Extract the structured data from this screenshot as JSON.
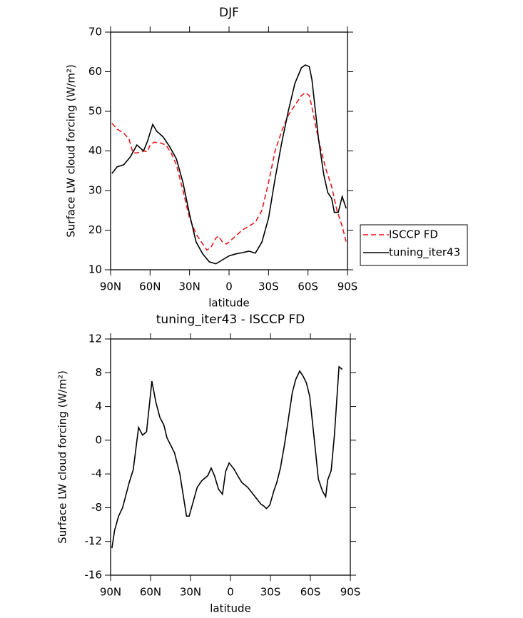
{
  "chart_data": [
    {
      "type": "line",
      "title": "DJF",
      "xlabel": "latitude",
      "ylabel": "Surface LW cloud forcing (W/m²)",
      "xlim": [
        90,
        -90
      ],
      "xticks": [
        {
          "value": 90,
          "label": "90N"
        },
        {
          "value": 60,
          "label": "60N"
        },
        {
          "value": 30,
          "label": "30N"
        },
        0,
        {
          "value": -30,
          "label": "30S"
        },
        {
          "value": -60,
          "label": "60S"
        },
        {
          "value": -90,
          "label": "90S"
        }
      ],
      "ylim": [
        10,
        70
      ],
      "yticks": [
        10,
        20,
        30,
        40,
        50,
        60,
        70
      ],
      "legend": "right",
      "series": [
        {
          "name": "ISCCP FD",
          "color": "#e8191d",
          "dash": true,
          "x": [
            89,
            85,
            80,
            76,
            73,
            70,
            65,
            62,
            60,
            57,
            52,
            48,
            44,
            40,
            35,
            30,
            25,
            20,
            17,
            14,
            10,
            8,
            5,
            2,
            0,
            -5,
            -10,
            -15,
            -20,
            -25,
            -30,
            -35,
            -40,
            -45,
            -50,
            -55,
            -58,
            -61,
            -63,
            -66,
            -70,
            -74,
            -78,
            -82,
            -86,
            -89
          ],
          "values": [
            47,
            45.5,
            44.5,
            43,
            39.5,
            39.5,
            40,
            39.8,
            41.5,
            42.2,
            42,
            41.5,
            39.5,
            36.5,
            30,
            23,
            19,
            16.5,
            15,
            15.5,
            18,
            18.5,
            17,
            16.5,
            17,
            18.5,
            20,
            21,
            22,
            25,
            32,
            40,
            45,
            49,
            51.5,
            54,
            54.7,
            54,
            51,
            46,
            40,
            35,
            31,
            25,
            21,
            17
          ]
        },
        {
          "name": "tuning_iter43",
          "color": "#000000",
          "dash": false,
          "x": [
            89,
            85,
            80,
            75,
            70,
            65,
            62,
            58,
            55,
            50,
            45,
            40,
            35,
            30,
            25,
            20,
            15,
            10,
            5,
            0,
            -5,
            -10,
            -15,
            -20,
            -25,
            -30,
            -35,
            -40,
            -45,
            -50,
            -55,
            -58,
            -61,
            -63,
            -65,
            -68,
            -72,
            -75,
            -78,
            -80,
            -83,
            -86,
            -89
          ],
          "values": [
            34.3,
            36,
            36.5,
            38.5,
            41.5,
            40,
            42.4,
            46.7,
            45,
            43.5,
            41,
            38,
            32,
            24,
            17,
            14,
            12,
            11.5,
            12.5,
            13.5,
            14,
            14.3,
            14.7,
            14.2,
            17,
            23,
            33,
            42,
            50,
            57,
            61,
            61.7,
            61.3,
            58,
            52,
            43,
            34,
            29.5,
            28,
            24.5,
            24.5,
            28.5,
            25.5
          ]
        }
      ]
    },
    {
      "type": "line",
      "title": "tuning_iter43 - ISCCP FD",
      "xlabel": "latitude",
      "ylabel": "Surface LW cloud forcing (W/m²)",
      "xlim": [
        90,
        -90
      ],
      "xticks": [
        {
          "value": 90,
          "label": "90N"
        },
        {
          "value": 60,
          "label": "60N"
        },
        {
          "value": 30,
          "label": "30N"
        },
        0,
        {
          "value": -30,
          "label": "30S"
        },
        {
          "value": -60,
          "label": "60S"
        },
        {
          "value": -90,
          "label": "90S"
        }
      ],
      "ylim": [
        -16,
        12
      ],
      "yticks": [
        -16,
        -12,
        -8,
        -4,
        0,
        4,
        8,
        12
      ],
      "color": "#000000",
      "x": [
        89,
        87,
        84,
        81,
        76,
        73,
        69,
        66,
        63,
        59,
        56,
        53,
        50,
        47.7,
        42,
        38,
        33,
        31,
        25,
        21.5,
        17,
        14.5,
        12,
        9,
        6,
        3.6,
        1,
        -2.6,
        -5.4,
        -8.5,
        -13,
        -16,
        -20,
        -23,
        -25,
        -27,
        -29.5,
        -32.6,
        -34.8,
        -37.5,
        -40.6,
        -43,
        -46.5,
        -49,
        -52,
        -54.5,
        -57,
        -59.5,
        -63,
        -66,
        -69,
        -71.5,
        -73,
        -75.6,
        -78,
        -81.5,
        -84
      ],
      "values": [
        -12.8,
        -10.7,
        -9,
        -8,
        -5,
        -3.5,
        1.5,
        0.6,
        1,
        7,
        4.5,
        2.7,
        1.8,
        0.3,
        -1.5,
        -4,
        -9,
        -9,
        -5.6,
        -4.8,
        -4.2,
        -3.3,
        -4.2,
        -5.8,
        -6.4,
        -3.7,
        -2.7,
        -3.4,
        -4.2,
        -5,
        -5.6,
        -6.2,
        -7,
        -7.6,
        -7.8,
        -8.1,
        -7.7,
        -6,
        -5,
        -3.3,
        -0.5,
        2,
        5.7,
        7.2,
        8.2,
        7.6,
        6.8,
        5.2,
        0,
        -4.6,
        -6,
        -6.7,
        -4.7,
        -3.6,
        0.5,
        8.7,
        8.4
      ]
    }
  ]
}
